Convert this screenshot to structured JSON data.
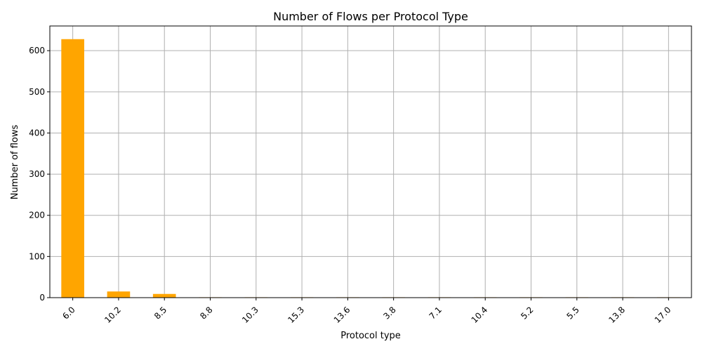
{
  "chart_data": {
    "type": "bar",
    "title": "Number of Flows per Protocol Type",
    "xlabel": "Protocol type",
    "ylabel": "Number of flows",
    "categories": [
      "6.0",
      "10.2",
      "8.5",
      "8.8",
      "10.3",
      "15.3",
      "13.6",
      "3.8",
      "7.1",
      "10.4",
      "5.2",
      "5.5",
      "13.8",
      "17.0"
    ],
    "values": [
      628,
      15,
      9,
      1,
      1,
      1,
      1,
      1,
      1,
      1,
      1,
      1,
      1,
      1
    ],
    "ylim": [
      0,
      660
    ],
    "yticks": [
      0,
      100,
      200,
      300,
      400,
      500,
      600
    ],
    "grid": true,
    "legend": "none",
    "bar_color": "#ffa500"
  }
}
